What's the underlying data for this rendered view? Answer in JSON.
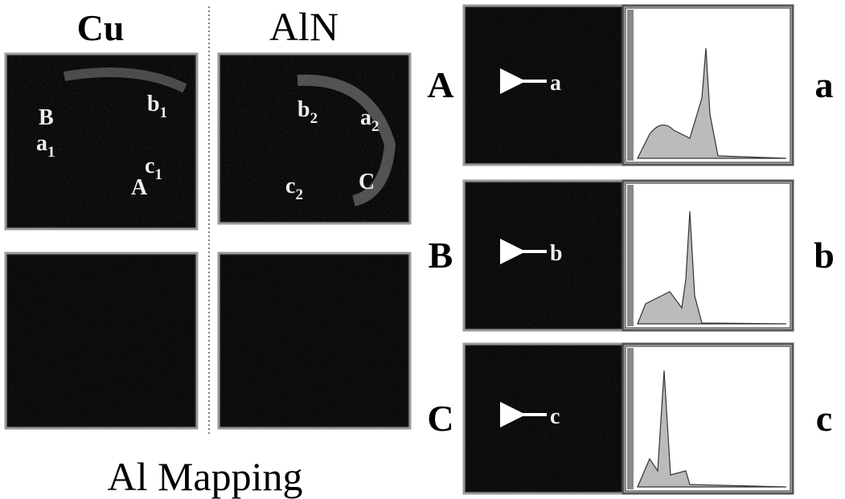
{
  "columns": {
    "left": "Cu",
    "right": "AlN"
  },
  "caption": "Al Mapping",
  "cu_labels": [
    {
      "letter": "B"
    },
    {
      "letter": "a",
      "sub": "1"
    },
    {
      "letter": "b",
      "sub": "1"
    },
    {
      "letter": "c",
      "sub": "1"
    },
    {
      "letter": "A"
    }
  ],
  "aln_labels": [
    {
      "letter": "b",
      "sub": "2"
    },
    {
      "letter": "a",
      "sub": "2"
    },
    {
      "letter": "c",
      "sub": "2"
    },
    {
      "letter": "C"
    }
  ],
  "rows": [
    {
      "label": "A",
      "arrow": "a",
      "spectrum": "a"
    },
    {
      "label": "B",
      "arrow": "b",
      "spectrum": "b"
    },
    {
      "label": "C",
      "arrow": "c",
      "spectrum": "c"
    }
  ]
}
